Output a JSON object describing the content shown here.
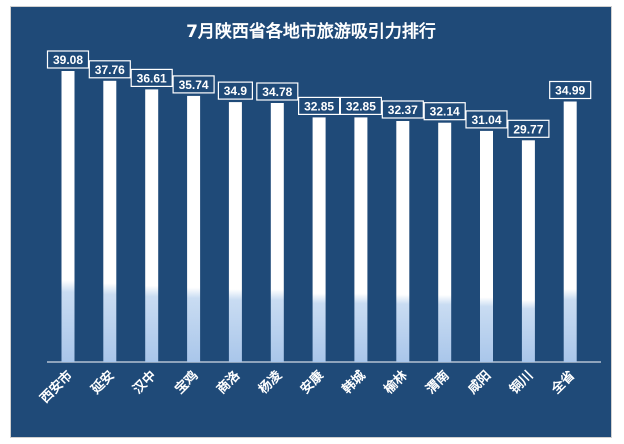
{
  "chart_data": {
    "type": "bar",
    "title": "7月陕西省各地市旅游吸引力排行",
    "categories": [
      "西安市",
      "延安",
      "汉中",
      "宝鸡",
      "商洛",
      "杨凌",
      "安康",
      "韩城",
      "榆林",
      "渭南",
      "咸阳",
      "铜川",
      "全省"
    ],
    "values": [
      39.08,
      37.76,
      36.61,
      35.74,
      34.9,
      34.78,
      32.85,
      32.85,
      32.37,
      32.14,
      31.04,
      29.77,
      34.99
    ],
    "value_labels": [
      "39.08",
      "37.76",
      "36.61",
      "35.74",
      "34.9",
      "34.78",
      "32.85",
      "32.85",
      "32.37",
      "32.14",
      "31.04",
      "29.77",
      "34.99"
    ],
    "ylim": [
      0,
      39.08
    ],
    "grid": false,
    "legend": "none",
    "data_labels": true,
    "colors": {
      "background": "#1f4a78",
      "bar_top": "#ffffff",
      "bar_bottom": "#a9c6ea",
      "text": "#ffffff"
    }
  }
}
